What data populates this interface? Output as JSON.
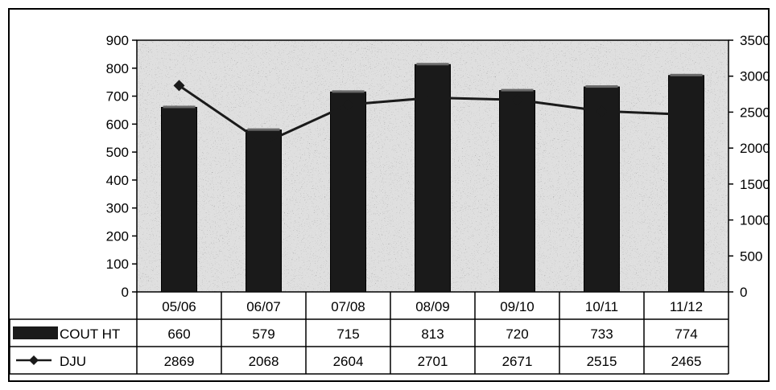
{
  "chart_data": {
    "type": "bar",
    "categories": [
      "05/06",
      "06/07",
      "07/08",
      "08/09",
      "09/10",
      "10/11",
      "11/12"
    ],
    "series": [
      {
        "name": "COUT HT",
        "type": "bar",
        "axis": "left",
        "values": [
          660,
          579,
          715,
          813,
          720,
          733,
          774
        ]
      },
      {
        "name": "DJU",
        "type": "line",
        "axis": "right",
        "values": [
          2869,
          2068,
          2604,
          2701,
          2671,
          2515,
          2465
        ]
      }
    ],
    "y_left": {
      "ylim": [
        0,
        900
      ],
      "ticks": [
        0,
        100,
        200,
        300,
        400,
        500,
        600,
        700,
        800,
        900
      ]
    },
    "y_right": {
      "ylim": [
        0,
        3500
      ],
      "ticks": [
        0,
        500,
        1000,
        1500,
        2000,
        2500,
        3000,
        3500
      ]
    },
    "data_table": true,
    "colors": {
      "bar": "#1a1a1a",
      "line": "#1a1a1a",
      "plot_bg": "#d0d0d0",
      "frame": "#000000"
    }
  }
}
